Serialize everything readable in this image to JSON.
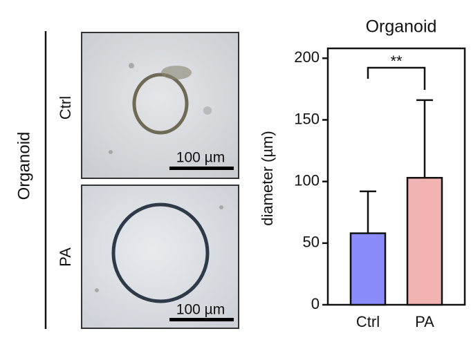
{
  "panel": {
    "label": "Organoid",
    "images": [
      {
        "label": "Ctrl",
        "scale_bar": "100 µm"
      },
      {
        "label": "PA",
        "scale_bar": "100 µm"
      }
    ]
  },
  "chart_data": {
    "type": "bar",
    "title": "Organoid",
    "ylabel": "diameter (µm)",
    "categories": [
      "Ctrl",
      "PA"
    ],
    "values": [
      58,
      103
    ],
    "errors": [
      34,
      63
    ],
    "colors": [
      "#8b8cfb",
      "#f2b3b3"
    ],
    "ylim": [
      0,
      208
    ],
    "yticks": [
      0,
      50,
      100,
      150,
      200
    ],
    "annotation": "**"
  }
}
